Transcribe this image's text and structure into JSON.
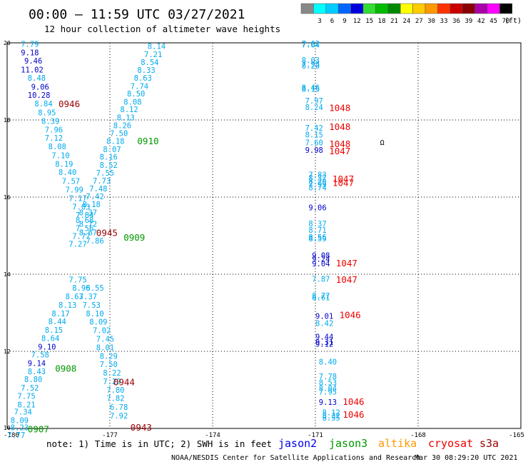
{
  "header": {
    "title": "00:00 – 11:59 UTC 03/27/2021",
    "subtitle": "12 hour collection of altimeter wave heights",
    "scale_unit": "(ft)"
  },
  "footer": {
    "note": "note: 1) Time is in UTC; 2) SWH is in feet",
    "credit": "NOAA/NESDIS Center for Satellite Applications and Research",
    "timestamp": "Mar 30 08:29:20 UTC 2021"
  },
  "legend": [
    {
      "name": "jason2",
      "color": "#0000ee"
    },
    {
      "name": "jason3",
      "color": "#009900"
    },
    {
      "name": "altika",
      "color": "#ff9900"
    },
    {
      "name": "cryosat",
      "color": "#ee0000"
    },
    {
      "name": "s3a",
      "color": "#990000"
    }
  ],
  "color_scale": [
    {
      "label": "",
      "color": "#888888"
    },
    {
      "label": "3",
      "color": "#00ffff"
    },
    {
      "label": "6",
      "color": "#00ccff"
    },
    {
      "label": "9",
      "color": "#0066ff"
    },
    {
      "label": "12",
      "color": "#0000dd"
    },
    {
      "label": "15",
      "color": "#33dd33"
    },
    {
      "label": "18",
      "color": "#00bb00"
    },
    {
      "label": "21",
      "color": "#008800"
    },
    {
      "label": "24",
      "color": "#ffff00"
    },
    {
      "label": "27",
      "color": "#ffcc00"
    },
    {
      "label": "30",
      "color": "#ff9900"
    },
    {
      "label": "33",
      "color": "#ff3300"
    },
    {
      "label": "36",
      "color": "#cc0000"
    },
    {
      "label": "39",
      "color": "#880000"
    },
    {
      "label": "42",
      "color": "#aa00aa"
    },
    {
      "label": "45",
      "color": "#ff00ff"
    },
    {
      "label": "70",
      "color": "#000000"
    }
  ],
  "chart_data": {
    "type": "scatter",
    "title": "00:00 – 11:59 UTC 03/27/2021",
    "subtitle": "12 hour collection of altimeter wave heights",
    "xlim": [
      -180,
      -165
    ],
    "ylim": [
      10,
      20
    ],
    "x_ticks": [
      "-180",
      "-177",
      "-174",
      "-171",
      "-168",
      "-165"
    ],
    "y_ticks": [
      "10",
      "12",
      "14",
      "16",
      "18",
      "20"
    ],
    "grid": true,
    "marker_symbol": "Ω",
    "marker": [
      -169.11,
      17.35
    ],
    "points": [
      {
        "t": "7.79",
        "x": -179.6,
        "y": 19.9,
        "c": "#00aaee"
      },
      {
        "t": "9.18",
        "x": -179.6,
        "y": 19.68,
        "c": "#0000cc"
      },
      {
        "t": "9.46",
        "x": -179.5,
        "y": 19.46,
        "c": "#0000cc"
      },
      {
        "t": "11.02",
        "x": -179.6,
        "y": 19.23,
        "c": "#0000cc"
      },
      {
        "t": "8.48",
        "x": -179.4,
        "y": 19.02,
        "c": "#00aaee"
      },
      {
        "t": "9.06",
        "x": -179.3,
        "y": 18.79,
        "c": "#0000cc"
      },
      {
        "t": "10.28",
        "x": -179.4,
        "y": 18.57,
        "c": "#0000cc"
      },
      {
        "t": "8.84",
        "x": -179.2,
        "y": 18.35,
        "c": "#00aaee"
      },
      {
        "t": "8.95",
        "x": -179.1,
        "y": 18.12,
        "c": "#00aaee"
      },
      {
        "t": "8.39",
        "x": -179.0,
        "y": 17.9,
        "c": "#00aaee"
      },
      {
        "t": "7.96",
        "x": -178.9,
        "y": 17.68,
        "c": "#00aaee"
      },
      {
        "t": "7.12",
        "x": -178.9,
        "y": 17.46,
        "c": "#00aaee"
      },
      {
        "t": "8.08",
        "x": -178.8,
        "y": 17.24,
        "c": "#00aaee"
      },
      {
        "t": "7.10",
        "x": -178.7,
        "y": 17.01,
        "c": "#00aaee"
      },
      {
        "t": "8.19",
        "x": -178.6,
        "y": 16.79,
        "c": "#00aaee"
      },
      {
        "t": "8.40",
        "x": -178.5,
        "y": 16.57,
        "c": "#00aaee"
      },
      {
        "t": "7.57",
        "x": -178.4,
        "y": 16.34,
        "c": "#00aaee"
      },
      {
        "t": "7.99",
        "x": -178.3,
        "y": 16.12,
        "c": "#00aaee"
      },
      {
        "t": "7.17",
        "x": -178.2,
        "y": 15.9,
        "c": "#00aaee"
      },
      {
        "t": "7.03",
        "x": -178.1,
        "y": 15.68,
        "c": "#00aaee"
      },
      {
        "t": "7.84",
        "x": -178.0,
        "y": 15.46,
        "c": "#00aaee"
      },
      {
        "t": "8.72",
        "x": -177.9,
        "y": 15.23,
        "c": "#00aaee"
      },
      {
        "t": "8.67",
        "x": -177.9,
        "y": 15.01,
        "c": "#00aaee"
      },
      {
        "t": "7.86",
        "x": -177.7,
        "y": 14.8,
        "c": "#00aaee"
      },
      {
        "t": "7.75",
        "x": -178.2,
        "y": 13.79,
        "c": "#00aaee"
      },
      {
        "t": "8.96",
        "x": -178.1,
        "y": 13.57,
        "c": "#00aaee"
      },
      {
        "t": "8.55",
        "x": -177.7,
        "y": 13.57,
        "c": "#00aaee"
      },
      {
        "t": "8.63",
        "x": -178.3,
        "y": 13.35,
        "c": "#00aaee"
      },
      {
        "t": "8.13",
        "x": -178.5,
        "y": 13.13,
        "c": "#00aaee"
      },
      {
        "t": "8.17",
        "x": -178.7,
        "y": 12.91,
        "c": "#00aaee"
      },
      {
        "t": "8.44",
        "x": -178.8,
        "y": 12.7,
        "c": "#00aaee"
      },
      {
        "t": "8.15",
        "x": -178.9,
        "y": 12.48,
        "c": "#00aaee"
      },
      {
        "t": "8.64",
        "x": -179.0,
        "y": 12.27,
        "c": "#00aaee"
      },
      {
        "t": "9.10",
        "x": -179.1,
        "y": 12.05,
        "c": "#0000cc"
      },
      {
        "t": "7.58",
        "x": -179.3,
        "y": 11.84,
        "c": "#00aaee"
      },
      {
        "t": "9.14",
        "x": -179.4,
        "y": 11.62,
        "c": "#0000cc"
      },
      {
        "t": "8.43",
        "x": -179.4,
        "y": 11.41,
        "c": "#00aaee"
      },
      {
        "t": "8.80",
        "x": -179.5,
        "y": 11.2,
        "c": "#00aaee"
      },
      {
        "t": "7.52",
        "x": -179.6,
        "y": 10.98,
        "c": "#00aaee"
      },
      {
        "t": "7.75",
        "x": -179.7,
        "y": 10.77,
        "c": "#00aaee"
      },
      {
        "t": "8.21",
        "x": -179.7,
        "y": 10.55,
        "c": "#00aaee"
      },
      {
        "t": "7.34",
        "x": -179.8,
        "y": 10.36,
        "c": "#00aaee"
      },
      {
        "t": "8.09",
        "x": -179.9,
        "y": 10.14,
        "c": "#00aaee"
      },
      {
        "t": "8.23",
        "x": -179.9,
        "y": 9.95,
        "c": "#00aaee"
      },
      {
        "t": "7.77",
        "x": -180.0,
        "y": 9.76,
        "c": "#00aaee"
      },
      {
        "t": "8.14",
        "x": -175.9,
        "y": 19.84,
        "c": "#00aaee"
      },
      {
        "t": "7.21",
        "x": -176.0,
        "y": 19.63,
        "c": "#00aaee"
      },
      {
        "t": "8.54",
        "x": -176.1,
        "y": 19.43,
        "c": "#00aaee"
      },
      {
        "t": "8.33",
        "x": -176.2,
        "y": 19.22,
        "c": "#00aaee"
      },
      {
        "t": "8.63",
        "x": -176.3,
        "y": 19.02,
        "c": "#00aaee"
      },
      {
        "t": "7.74",
        "x": -176.4,
        "y": 18.81,
        "c": "#00aaee"
      },
      {
        "t": "8.50",
        "x": -176.5,
        "y": 18.61,
        "c": "#00aaee"
      },
      {
        "t": "8.08",
        "x": -176.6,
        "y": 18.4,
        "c": "#00aaee"
      },
      {
        "t": "8.12",
        "x": -176.7,
        "y": 18.2,
        "c": "#00aaee"
      },
      {
        "t": "8.13",
        "x": -176.8,
        "y": 17.99,
        "c": "#00aaee"
      },
      {
        "t": "8.26",
        "x": -176.9,
        "y": 17.79,
        "c": "#00aaee"
      },
      {
        "t": "7.50",
        "x": -177.0,
        "y": 17.58,
        "c": "#00aaee"
      },
      {
        "t": "8.18",
        "x": -177.1,
        "y": 17.38,
        "c": "#00aaee"
      },
      {
        "t": "8.07",
        "x": -177.2,
        "y": 17.17,
        "c": "#00aaee"
      },
      {
        "t": "8.16",
        "x": -177.3,
        "y": 16.97,
        "c": "#00aaee"
      },
      {
        "t": "8.52",
        "x": -177.3,
        "y": 16.76,
        "c": "#00aaee"
      },
      {
        "t": "7.55",
        "x": -177.4,
        "y": 16.56,
        "c": "#00aaee"
      },
      {
        "t": "7.73",
        "x": -177.5,
        "y": 16.35,
        "c": "#00aaee"
      },
      {
        "t": "7.48",
        "x": -177.6,
        "y": 16.15,
        "c": "#00aaee"
      },
      {
        "t": "7.42",
        "x": -177.7,
        "y": 15.94,
        "c": "#00aaee"
      },
      {
        "t": "8.18",
        "x": -177.8,
        "y": 15.74,
        "c": "#00aaee"
      },
      {
        "t": "8.37",
        "x": -177.9,
        "y": 15.53,
        "c": "#00aaee"
      },
      {
        "t": "8.68",
        "x": -178.0,
        "y": 15.33,
        "c": "#00aaee"
      },
      {
        "t": "7.56",
        "x": -178.0,
        "y": 15.12,
        "c": "#00aaee"
      },
      {
        "t": "7.77",
        "x": -178.1,
        "y": 14.92,
        "c": "#00aaee"
      },
      {
        "t": "7.27",
        "x": -178.2,
        "y": 14.71,
        "c": "#00aaee"
      },
      {
        "t": "7.37",
        "x": -177.9,
        "y": 13.35,
        "c": "#00aaee"
      },
      {
        "t": "7.53",
        "x": -177.8,
        "y": 13.13,
        "c": "#00aaee"
      },
      {
        "t": "8.10",
        "x": -177.7,
        "y": 12.91,
        "c": "#00aaee"
      },
      {
        "t": "8.09",
        "x": -177.6,
        "y": 12.69,
        "c": "#00aaee"
      },
      {
        "t": "7.02",
        "x": -177.5,
        "y": 12.47,
        "c": "#00aaee"
      },
      {
        "t": "7.45",
        "x": -177.4,
        "y": 12.25,
        "c": "#00aaee"
      },
      {
        "t": "8.01",
        "x": -177.4,
        "y": 12.03,
        "c": "#00aaee"
      },
      {
        "t": "8.29",
        "x": -177.3,
        "y": 11.81,
        "c": "#00aaee"
      },
      {
        "t": "7.50",
        "x": -177.3,
        "y": 11.59,
        "c": "#00aaee"
      },
      {
        "t": "8.22",
        "x": -177.2,
        "y": 11.37,
        "c": "#00aaee"
      },
      {
        "t": "7.29",
        "x": -177.2,
        "y": 11.15,
        "c": "#00aaee"
      },
      {
        "t": "7.80",
        "x": -177.1,
        "y": 10.93,
        "c": "#00aaee"
      },
      {
        "t": "7.82",
        "x": -177.1,
        "y": 10.71,
        "c": "#00aaee"
      },
      {
        "t": "6.78",
        "x": -177.0,
        "y": 10.48,
        "c": "#00aaee"
      },
      {
        "t": "7.92",
        "x": -177.0,
        "y": 10.26,
        "c": "#00aaee"
      },
      {
        "t": "7.62",
        "x": -171.4,
        "y": 19.91,
        "c": "#00aaee"
      },
      {
        "t": "7.64",
        "x": -171.4,
        "y": 19.88,
        "c": "#00aaee"
      },
      {
        "t": "8.03",
        "x": -171.4,
        "y": 19.48,
        "c": "#00aaee"
      },
      {
        "t": "7.93",
        "x": -171.4,
        "y": 19.38,
        "c": "#00aaee"
      },
      {
        "t": "8.20",
        "x": -171.4,
        "y": 19.33,
        "c": "#00aaee"
      },
      {
        "t": "8.46",
        "x": -171.4,
        "y": 18.77,
        "c": "#00aaee"
      },
      {
        "t": "8.15",
        "x": -171.4,
        "y": 18.73,
        "c": "#00aaee"
      },
      {
        "t": "7.97",
        "x": -171.3,
        "y": 18.43,
        "c": "#00aaee"
      },
      {
        "t": "8.24",
        "x": -171.3,
        "y": 18.26,
        "c": "#00aaee"
      },
      {
        "t": "7.42",
        "x": -171.3,
        "y": 17.72,
        "c": "#00aaee"
      },
      {
        "t": "8.15",
        "x": -171.3,
        "y": 17.55,
        "c": "#00aaee"
      },
      {
        "t": "7.60",
        "x": -171.3,
        "y": 17.34,
        "c": "#00aaee"
      },
      {
        "t": "9.98",
        "x": -171.3,
        "y": 17.15,
        "c": "#0000cc"
      },
      {
        "t": "7.83",
        "x": -171.2,
        "y": 16.51,
        "c": "#00aaee"
      },
      {
        "t": "8.37",
        "x": -171.2,
        "y": 16.43,
        "c": "#00aaee"
      },
      {
        "t": "8.20",
        "x": -171.2,
        "y": 16.33,
        "c": "#00aaee"
      },
      {
        "t": "7.99",
        "x": -171.2,
        "y": 16.26,
        "c": "#00aaee"
      },
      {
        "t": "8.74",
        "x": -171.2,
        "y": 16.18,
        "c": "#00aaee"
      },
      {
        "t": "9.06",
        "x": -171.2,
        "y": 15.66,
        "c": "#0000cc"
      },
      {
        "t": "8.37",
        "x": -171.2,
        "y": 15.24,
        "c": "#00aaee"
      },
      {
        "t": "8.71",
        "x": -171.2,
        "y": 15.07,
        "c": "#00aaee"
      },
      {
        "t": "8.56",
        "x": -171.2,
        "y": 14.89,
        "c": "#00aaee"
      },
      {
        "t": "8.59",
        "x": -171.2,
        "y": 14.85,
        "c": "#00aaee"
      },
      {
        "t": "9.08",
        "x": -171.1,
        "y": 14.42,
        "c": "#0000cc"
      },
      {
        "t": "9.24",
        "x": -171.1,
        "y": 14.32,
        "c": "#0000cc"
      },
      {
        "t": "9.04",
        "x": -171.1,
        "y": 14.2,
        "c": "#0000cc"
      },
      {
        "t": "7.87",
        "x": -171.1,
        "y": 13.81,
        "c": "#00aaee"
      },
      {
        "t": "8.77",
        "x": -171.1,
        "y": 13.37,
        "c": "#00aaee"
      },
      {
        "t": "8.61",
        "x": -171.1,
        "y": 13.32,
        "c": "#00aaee"
      },
      {
        "t": "9.01",
        "x": -171.0,
        "y": 12.84,
        "c": "#0000cc"
      },
      {
        "t": "8.42",
        "x": -171.0,
        "y": 12.66,
        "c": "#00aaee"
      },
      {
        "t": "9.44",
        "x": -171.0,
        "y": 12.31,
        "c": "#0000cc"
      },
      {
        "t": "9.31",
        "x": -171.0,
        "y": 12.17,
        "c": "#0000cc"
      },
      {
        "t": "9.12",
        "x": -171.0,
        "y": 12.12,
        "c": "#0000cc"
      },
      {
        "t": "8.40",
        "x": -170.9,
        "y": 11.66,
        "c": "#00aaee"
      },
      {
        "t": "7.78",
        "x": -170.9,
        "y": 11.28,
        "c": "#00aaee"
      },
      {
        "t": "8.53",
        "x": -170.9,
        "y": 11.12,
        "c": "#00aaee"
      },
      {
        "t": "8.04",
        "x": -170.9,
        "y": 10.97,
        "c": "#00aaee"
      },
      {
        "t": "7.95",
        "x": -170.9,
        "y": 10.88,
        "c": "#00aaee"
      },
      {
        "t": "9.13",
        "x": -170.9,
        "y": 10.61,
        "c": "#0000cc"
      },
      {
        "t": "8.12",
        "x": -170.8,
        "y": 10.34,
        "c": "#00aaee"
      },
      {
        "t": "8.32",
        "x": -170.8,
        "y": 10.26,
        "c": "#00aaee"
      },
      {
        "t": "8.55",
        "x": -170.8,
        "y": 10.2,
        "c": "#00aaee"
      }
    ],
    "time_labels": [
      {
        "t": "0946",
        "x": -178.5,
        "y": 18.33,
        "sat": "s3a"
      },
      {
        "t": "0910",
        "x": -176.2,
        "y": 17.37,
        "sat": "jason3"
      },
      {
        "t": "0945",
        "x": -177.4,
        "y": 14.99,
        "sat": "s3a"
      },
      {
        "t": "0909",
        "x": -176.6,
        "y": 14.87,
        "sat": "jason3"
      },
      {
        "t": "0908",
        "x": -178.6,
        "y": 11.47,
        "sat": "jason3"
      },
      {
        "t": "0944",
        "x": -176.9,
        "y": 11.12,
        "sat": "s3a"
      },
      {
        "t": "0907",
        "x": -179.4,
        "y": 9.9,
        "sat": "jason3"
      },
      {
        "t": "0943",
        "x": -176.4,
        "y": 9.94,
        "sat": "s3a"
      },
      {
        "t": "1048",
        "x": -170.6,
        "y": 18.23,
        "sat": "cryosat"
      },
      {
        "t": "1048",
        "x": -170.6,
        "y": 17.74,
        "sat": "cryosat"
      },
      {
        "t": "1048",
        "x": -170.6,
        "y": 17.3,
        "sat": "cryosat"
      },
      {
        "t": "1047",
        "x": -170.6,
        "y": 17.11,
        "sat": "cryosat"
      },
      {
        "t": "1047",
        "x": -170.5,
        "y": 16.39,
        "sat": "cryosat"
      },
      {
        "t": "1047",
        "x": -170.5,
        "y": 16.29,
        "sat": "cryosat"
      },
      {
        "t": "1047",
        "x": -170.4,
        "y": 14.2,
        "sat": "cryosat"
      },
      {
        "t": "1047",
        "x": -170.4,
        "y": 13.78,
        "sat": "cryosat"
      },
      {
        "t": "1046",
        "x": -170.3,
        "y": 12.86,
        "sat": "cryosat"
      },
      {
        "t": "1046",
        "x": -170.2,
        "y": 10.61,
        "sat": "cryosat"
      },
      {
        "t": "1046",
        "x": -170.2,
        "y": 10.28,
        "sat": "cryosat"
      }
    ]
  }
}
